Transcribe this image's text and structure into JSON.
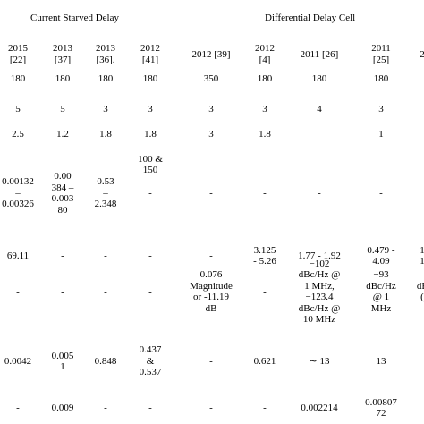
{
  "groups": {
    "current_starved": "Current Starved Delay",
    "differential": "Differential Delay Cell"
  },
  "headers": [
    {
      "year": "2015",
      "ref": "[22]"
    },
    {
      "year": "2013",
      "ref": "[37]"
    },
    {
      "year": "2013",
      "ref": "[36]."
    },
    {
      "year": "2012",
      "ref": "[41]"
    },
    {
      "year": "2012 [39]",
      "ref": ""
    },
    {
      "year": "2012",
      "ref": "[4]"
    },
    {
      "year": "2011 [26]",
      "ref": ""
    },
    {
      "year": "2011",
      "ref": "[25]"
    },
    {
      "year": "2",
      "ref": ""
    }
  ],
  "rows": [
    [
      "180",
      "180",
      "180",
      "180",
      "350",
      "180",
      "180",
      "180",
      ""
    ],
    [
      "5",
      "5",
      "3",
      "3",
      "3",
      "3",
      "4",
      "3",
      ""
    ],
    [
      "2.5",
      "1.2",
      "1.8",
      "1.8",
      "3",
      "1.8",
      "",
      "1",
      ""
    ],
    [
      "-",
      "-",
      "-",
      "100 &\n150",
      "-",
      "-",
      "-",
      "-",
      ""
    ],
    [
      "0.00132\n–\n0.00326",
      "0.00\n384 –\n0.003\n80",
      "0.53\n–\n2.348",
      "-",
      "-",
      "-",
      "-",
      "-",
      ""
    ],
    [
      "69.11",
      "-",
      "-",
      "-",
      "-",
      "3.125\n- 5.26",
      "1.77 - 1.92",
      "0.479 -\n4.09",
      "1\n1"
    ],
    [
      "-",
      "-",
      "-",
      "-",
      "0.076\nMagnitude\nor -11.19\ndB",
      "-",
      "−102\ndBc/Hz @\n1 MHz,\n−123.4\ndBc/Hz @\n10 MHz",
      "−93\ndBc/Hz\n@ 1\nMHz",
      "dE\n("
    ],
    [
      "0.0042",
      "0.005\n1",
      "0.848",
      "0.437\n&\n0.537",
      "-",
      "0.621",
      "∼ 13",
      "13",
      ""
    ],
    [
      "-",
      "0.009",
      "-",
      "-",
      "-",
      "-",
      "0.002214",
      "0.00807\n72",
      ""
    ]
  ]
}
